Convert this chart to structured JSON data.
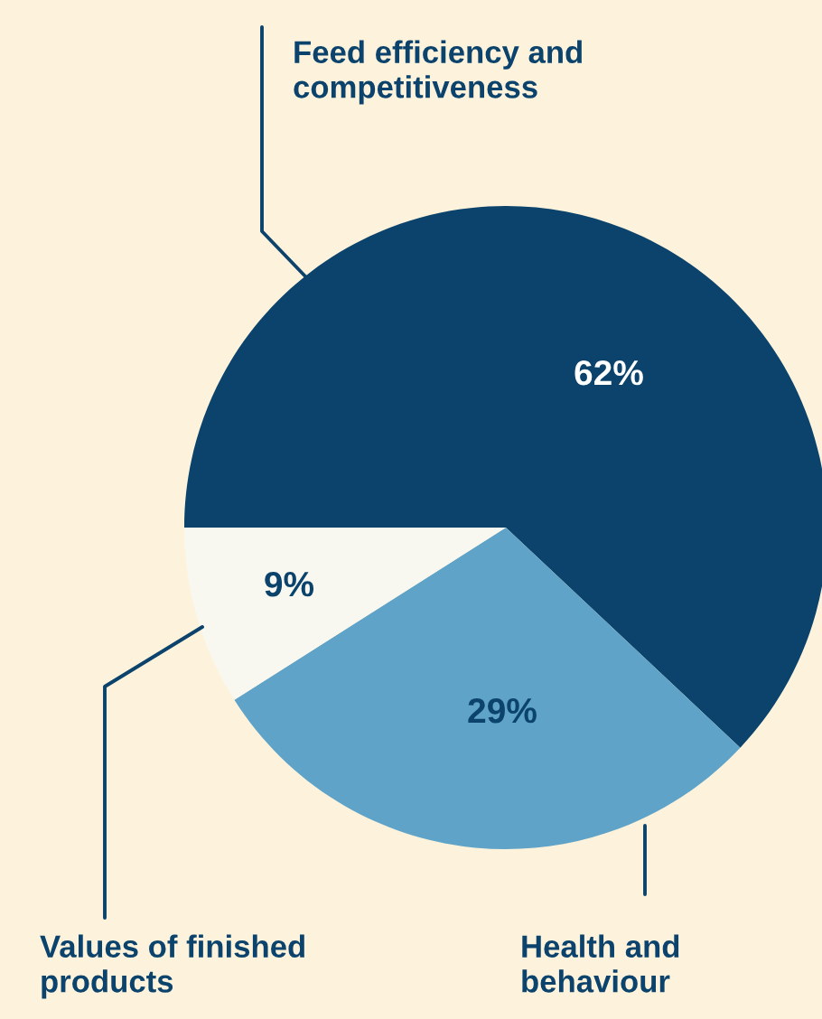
{
  "chart_data": {
    "type": "pie",
    "categories": [
      "Feed efficiency and\ncompetitiveness",
      "Health and\nbehaviour",
      "Values of finished\nproducts"
    ],
    "values": [
      62,
      29,
      9
    ],
    "value_labels": [
      "62%",
      "29%",
      "9%"
    ],
    "colors": [
      "#0b436c",
      "#5fa3c9",
      "#f8f8f0"
    ],
    "legend": false
  }
}
